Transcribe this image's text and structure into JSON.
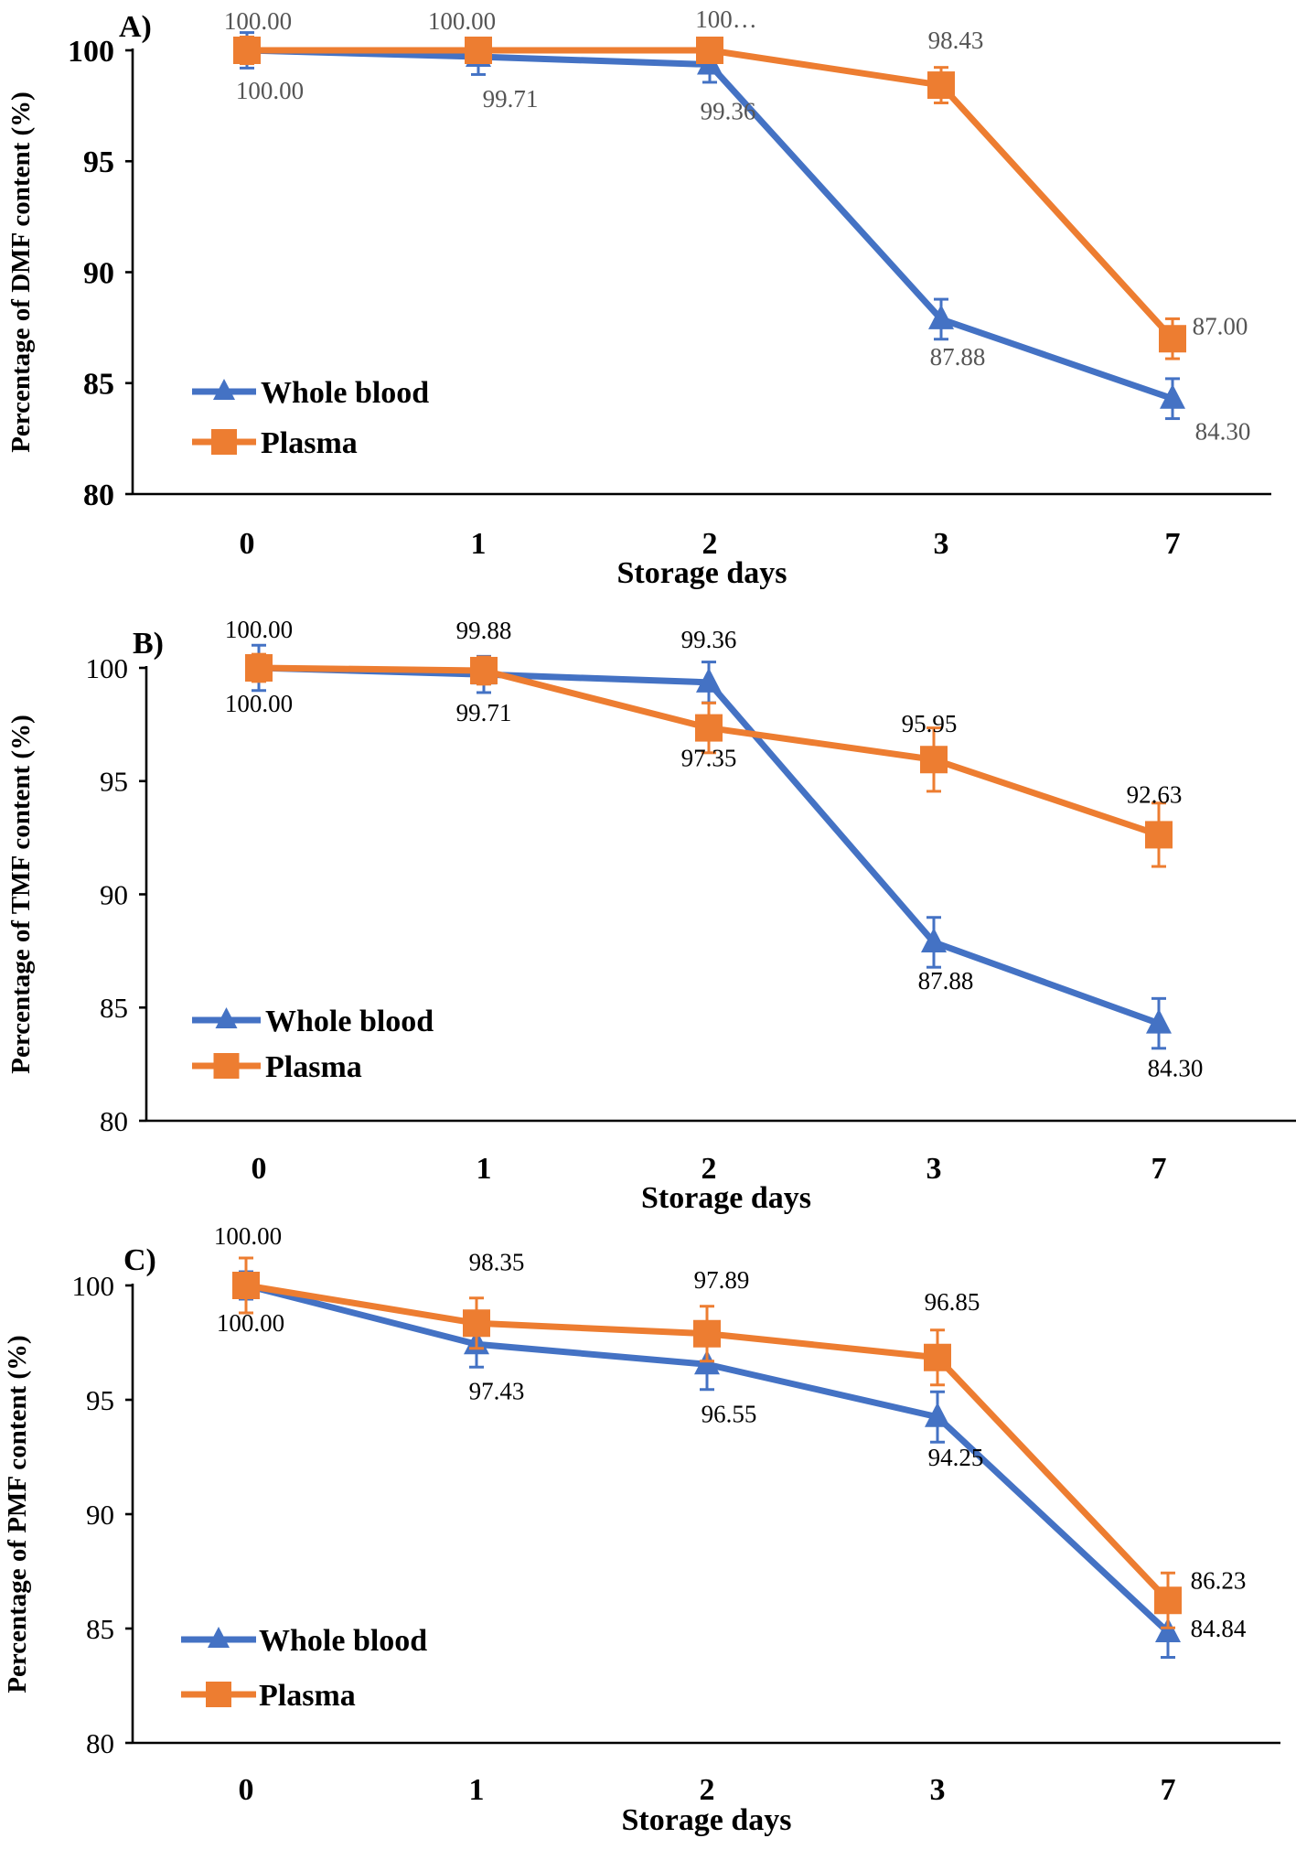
{
  "chart_data": [
    {
      "type": "line",
      "panel_label": "A)",
      "categories": [
        "0",
        "1",
        "2",
        "3",
        "7"
      ],
      "xlabel": "Storage days",
      "ylabel": "Percentage of DMF content (%)",
      "ylim": [
        80,
        100
      ],
      "yticks": [
        "80",
        "85",
        "90",
        "95",
        "100"
      ],
      "legend_position": "bottom-left",
      "series": [
        {
          "name": "Whole blood",
          "color": "#4472C4",
          "marker": "triangle",
          "values": [
            100.0,
            99.71,
            99.36,
            87.88,
            84.3
          ],
          "errors": [
            0.8,
            0.8,
            0.8,
            0.9,
            0.9
          ],
          "labels": [
            "100.00",
            "99.71",
            "99.36",
            "87.88",
            "84.30"
          ]
        },
        {
          "name": "Plasma",
          "color": "#ED7D31",
          "marker": "square",
          "values": [
            100.0,
            100.0,
            100.0,
            98.43,
            87.0
          ],
          "errors": [
            0.6,
            0.5,
            0.5,
            0.8,
            0.9
          ],
          "labels": [
            "100.00",
            "100.00",
            "100…",
            "98.43",
            "87.00"
          ]
        }
      ]
    },
    {
      "type": "line",
      "panel_label": "B)",
      "categories": [
        "0",
        "1",
        "2",
        "3",
        "7"
      ],
      "xlabel": "Storage days",
      "ylabel": "Percentage of TMF content (%)",
      "ylim": [
        80,
        100
      ],
      "yticks": [
        "80",
        "85",
        "90",
        "95",
        "100"
      ],
      "legend_position": "bottom-left",
      "series": [
        {
          "name": "Whole blood",
          "color": "#4472C4",
          "marker": "triangle",
          "values": [
            100.0,
            99.71,
            99.36,
            87.88,
            84.3
          ],
          "errors": [
            1.0,
            0.8,
            0.9,
            1.1,
            1.1
          ],
          "labels": [
            "100.00",
            "99.71",
            "99.36",
            "87.88",
            "84.30"
          ]
        },
        {
          "name": "Plasma",
          "color": "#ED7D31",
          "marker": "square",
          "values": [
            100.0,
            99.88,
            97.35,
            95.95,
            92.63
          ],
          "errors": [
            0.6,
            0.6,
            1.1,
            1.4,
            1.4
          ],
          "labels": [
            "100.00",
            "99.88",
            "97.35",
            "95.95",
            "92.63"
          ]
        }
      ]
    },
    {
      "type": "line",
      "panel_label": "C)",
      "categories": [
        "0",
        "1",
        "2",
        "3",
        "7"
      ],
      "xlabel": "Storage days",
      "ylabel": "Percentage of PMF content (%)",
      "ylim": [
        80,
        100
      ],
      "yticks": [
        "80",
        "85",
        "90",
        "95",
        "100"
      ],
      "legend_position": "bottom-left",
      "series": [
        {
          "name": "Whole blood",
          "color": "#4472C4",
          "marker": "triangle",
          "values": [
            100.0,
            97.43,
            96.55,
            94.25,
            84.84
          ],
          "errors": [
            0.6,
            1.0,
            1.1,
            1.1,
            1.1
          ],
          "labels": [
            "100.00",
            "97.43",
            "96.55",
            "94.25",
            "84.84"
          ]
        },
        {
          "name": "Plasma",
          "color": "#ED7D31",
          "marker": "square",
          "values": [
            100.0,
            98.35,
            97.89,
            96.85,
            86.23
          ],
          "errors": [
            1.2,
            1.1,
            1.2,
            1.2,
            1.2
          ],
          "labels": [
            "100.00",
            "98.35",
            "97.89",
            "96.85",
            "86.23"
          ]
        }
      ]
    }
  ]
}
